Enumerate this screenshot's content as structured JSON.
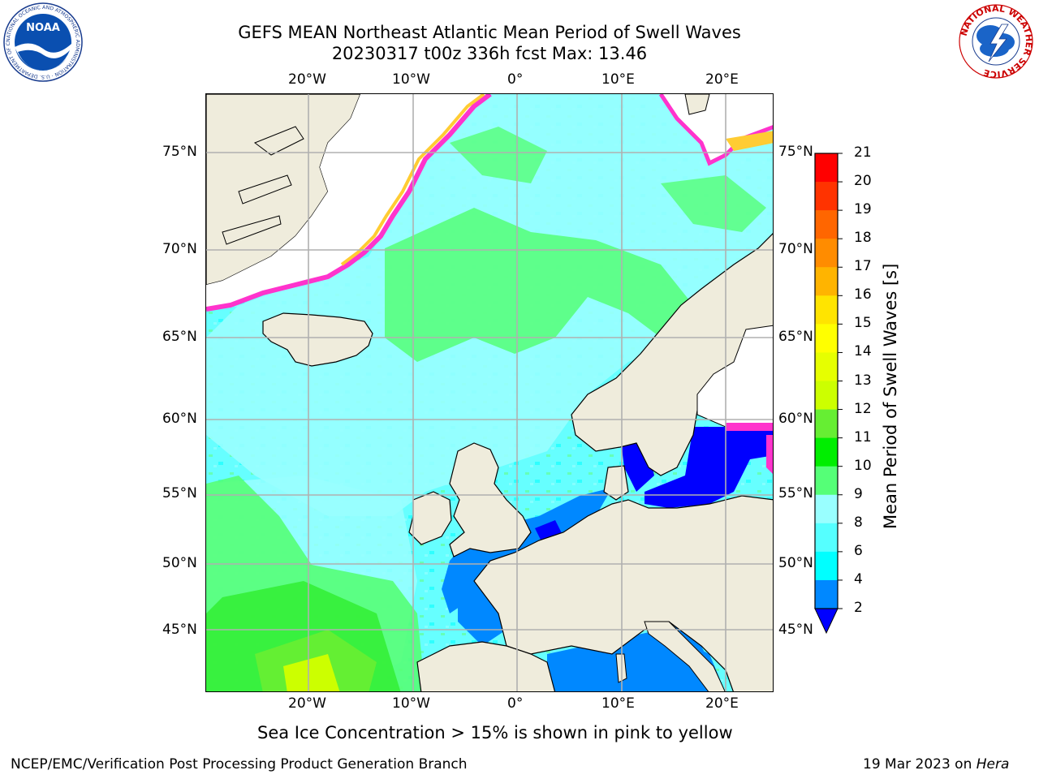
{
  "title": {
    "line1": "GEFS MEAN Northeast Atlantic Mean Period of Swell Waves",
    "line2": "20230317 t00z 336h fcst   Max: 13.46"
  },
  "map": {
    "lon_ticks": [
      "20°W",
      "10°W",
      "0°",
      "10°E",
      "20°E"
    ],
    "lat_ticks": [
      "75°N",
      "70°N",
      "65°N",
      "60°N",
      "55°N",
      "50°N",
      "45°N"
    ],
    "colors": {
      "land": "#efecdc",
      "ice_white": "#ffffff",
      "ice_edge_pink": "#ff33cc",
      "ice_edge_yellow": "#ffcc33",
      "grid": "#b0b0b0"
    }
  },
  "colorbar": {
    "title": "Mean Period of Swell Waves [s]",
    "labels": [
      "21",
      "20",
      "19",
      "18",
      "17",
      "16",
      "15",
      "14",
      "13",
      "12",
      "11",
      "10",
      "9",
      "8",
      "6",
      "4",
      "2"
    ],
    "colors": [
      "#ff0000",
      "#ff3300",
      "#ff6600",
      "#ff8c00",
      "#ffb400",
      "#ffe400",
      "#ffff00",
      "#e6ff00",
      "#ccff00",
      "#66ee33",
      "#00ee00",
      "#55ff77",
      "#99ffff",
      "#55ffff",
      "#00ffff",
      "#0088ff"
    ],
    "extend_color": "#0000ff"
  },
  "caption": "Sea Ice Concentration > 15% is shown in pink to yellow",
  "footer": {
    "left": "NCEP/EMC/Verification Post Processing Product Generation Branch",
    "date": "19 Mar 2023 on ",
    "machine": "Hera"
  },
  "logos": {
    "noaa_text": "NOAA",
    "noaa_ring": "NATIONAL OCEANIC AND ATMOSPHERIC ADMINISTRATION · U.S. DEPARTMENT OF COMMERCE",
    "nws_ring": "NATIONAL WEATHER SERVICE"
  }
}
